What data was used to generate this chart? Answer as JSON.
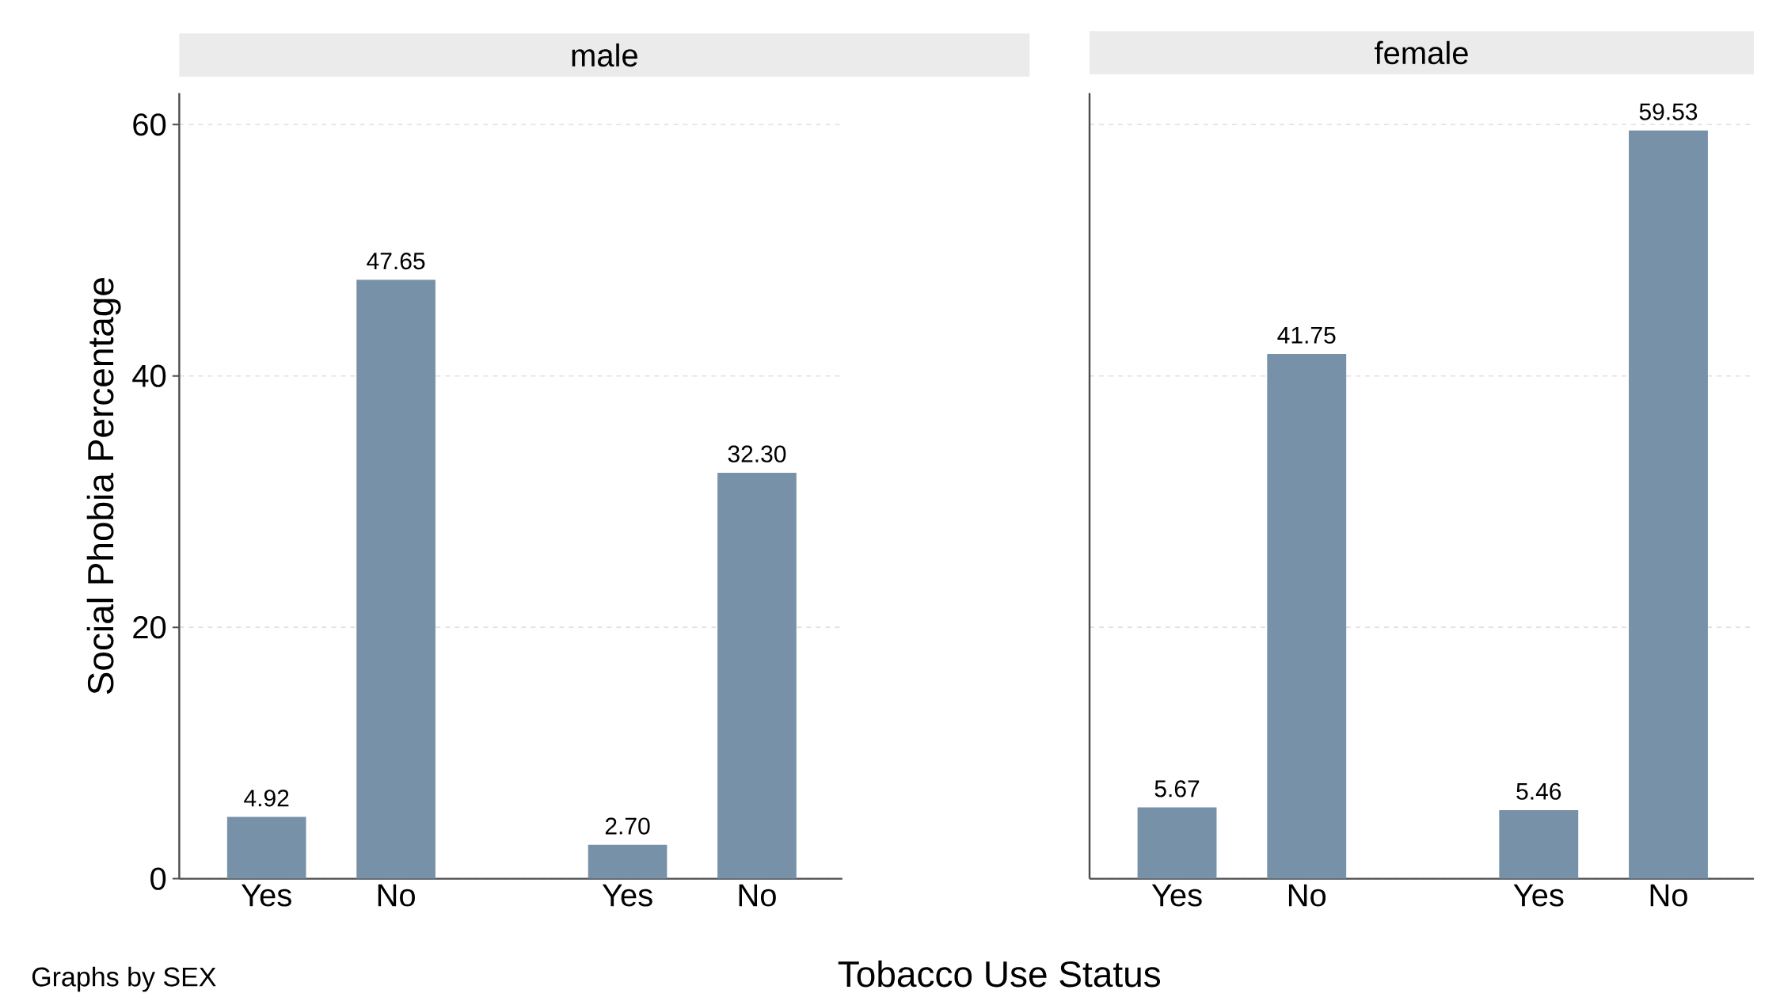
{
  "chart_data": [
    {
      "type": "bar",
      "title": "male",
      "ylabel": "Social Phobia Percentage",
      "xlabel": "Tobacco Use Status",
      "annotations": [
        "Graphs by SEX"
      ],
      "categories": [
        "Yes",
        "No",
        "Yes",
        "No"
      ],
      "values": [
        4.92,
        47.65,
        2.7,
        32.3
      ],
      "value_labels": [
        "4.92",
        "47.65",
        "2.70",
        "32.30"
      ],
      "color": "#7792a8",
      "ylim": [
        0,
        62.5
      ],
      "yticks": [
        0,
        20,
        40,
        60
      ],
      "grid": "y"
    },
    {
      "type": "bar",
      "title": "female",
      "categories": [
        "Yes",
        "No",
        "Yes",
        "No"
      ],
      "values": [
        5.67,
        41.75,
        5.46,
        59.53
      ],
      "value_labels": [
        "5.67",
        "41.75",
        "5.46",
        "59.53"
      ],
      "color": "#7792a8",
      "ylim": [
        0,
        62.5
      ],
      "yticks": [
        0,
        20,
        40,
        60
      ],
      "grid": "y",
      "tick_labels": "x"
    }
  ]
}
